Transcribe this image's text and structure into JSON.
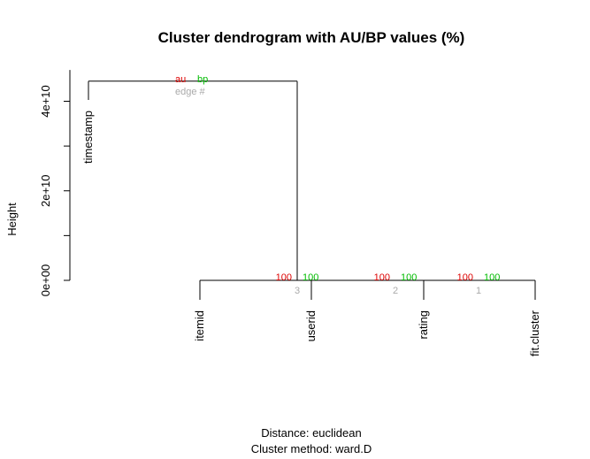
{
  "chart_data": {
    "type": "dendrogram",
    "title": "Cluster dendrogram with AU/BP values (%)",
    "ylabel": "Height",
    "y_ticks": [
      {
        "value": 0,
        "label": "0e+00"
      },
      {
        "value": 20000000000,
        "label": "2e+10"
      },
      {
        "value": 40000000000,
        "label": "4e+10"
      }
    ],
    "ylim": [
      0,
      47000000000
    ],
    "leaves": [
      "timestamp",
      "itemid",
      "userid",
      "rating",
      "fit.cluster"
    ],
    "merges": [
      {
        "edge": "1",
        "left": "rating",
        "right": "fit.cluster",
        "height": 0,
        "au": "100",
        "bp": "100"
      },
      {
        "edge": "2",
        "left": "userid",
        "right": "edge 1",
        "height": 0,
        "au": "100",
        "bp": "100"
      },
      {
        "edge": "3",
        "left": "itemid",
        "right": "edge 2",
        "height": 0,
        "au": "100",
        "bp": "100"
      },
      {
        "edge": "",
        "left": "timestamp",
        "right": "edge 3",
        "height": 44500000000,
        "au": "",
        "bp": ""
      }
    ],
    "legend": {
      "au": "au",
      "bp": "bp",
      "edge": "edge #"
    },
    "colors": {
      "au": "#dd0000",
      "bp": "#00bb00",
      "edge": "#aaaaaa"
    },
    "subtitle_lines": [
      "Distance:  euclidean",
      "Cluster method: ward.D"
    ]
  }
}
